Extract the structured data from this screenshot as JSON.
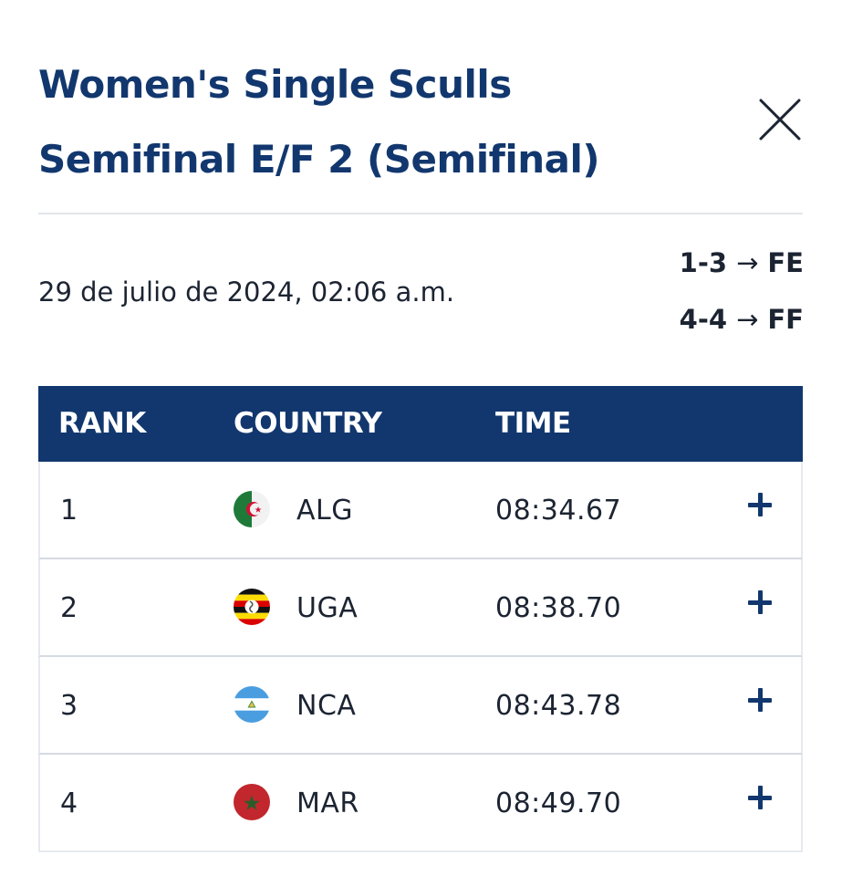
{
  "header": {
    "title_line1": "Women's Single Sculls",
    "title_line2": "Semifinal E/F 2 (Semifinal)",
    "close_icon": "close-icon"
  },
  "event": {
    "date": "29 de julio de 2024, 02:06 a.m.",
    "progression": [
      {
        "ranks": "1-3",
        "arrow": "→",
        "final": "FE"
      },
      {
        "ranks": "4-4",
        "arrow": "→",
        "final": "FF"
      }
    ]
  },
  "table": {
    "columns": [
      "RANK",
      "COUNTRY",
      "TIME"
    ],
    "header_color": "#12376e",
    "rows": [
      {
        "rank": "1",
        "flag": "algeria-flag-icon",
        "country": "ALG",
        "time": "08:34.67",
        "expand_icon": "plus-icon"
      },
      {
        "rank": "2",
        "flag": "uganda-flag-icon",
        "country": "UGA",
        "time": "08:38.70",
        "expand_icon": "plus-icon"
      },
      {
        "rank": "3",
        "flag": "nicaragua-flag-icon",
        "country": "NCA",
        "time": "08:43.78",
        "expand_icon": "plus-icon"
      },
      {
        "rank": "4",
        "flag": "morocco-flag-icon",
        "country": "MAR",
        "time": "08:49.70",
        "expand_icon": "plus-icon"
      }
    ]
  }
}
